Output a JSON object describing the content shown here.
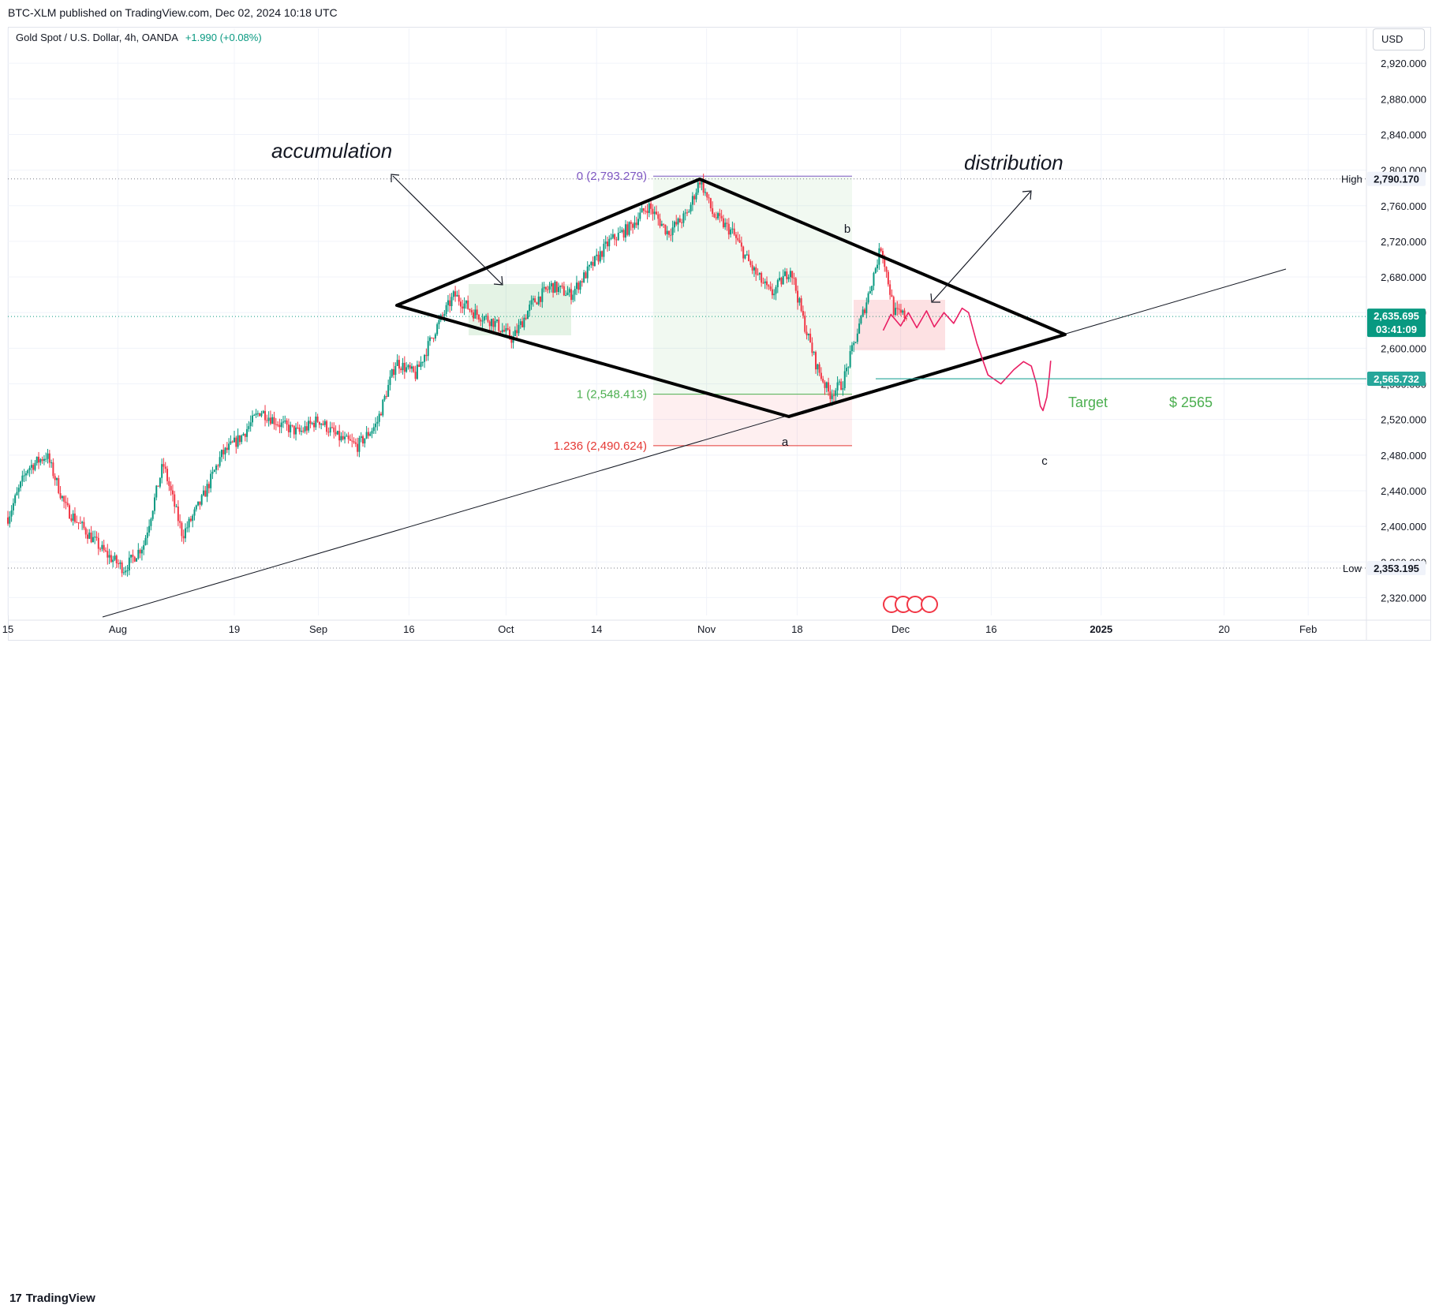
{
  "header": {
    "published_text": "BTC-XLM published on TradingView.com, Dec 02, 2024 10:18 UTC"
  },
  "symbol": {
    "name": "Gold Spot / U.S. Dollar, 4h, OANDA",
    "change": "+1.990 (+0.08%)"
  },
  "currency_button": "USD",
  "footer": {
    "logo": "17",
    "brand": "TradingView"
  },
  "colors": {
    "up": "#089981",
    "down": "#f23645",
    "fib_top": "#7e57c2",
    "fib_one": "#4caf50",
    "fib_ext": "#e53935",
    "wave": "#e91e63",
    "target": "#26a69a"
  },
  "chart_data": {
    "type": "candlestick",
    "symbol": "XAUUSD",
    "timeframe": "4h",
    "ylim": [
      2300,
      2960
    ],
    "y_ticks": [
      "2,320.000",
      "2,360.000",
      "2,400.000",
      "2,440.000",
      "2,480.000",
      "2,520.000",
      "2,560.000",
      "2,600.000",
      "2,640.000",
      "2,680.000",
      "2,720.000",
      "2,760.000",
      "2,800.000",
      "2,840.000",
      "2,880.000",
      "2,920.000"
    ],
    "x_ticks": [
      "15",
      "Aug",
      "19",
      "Sep",
      "16",
      "Oct",
      "14",
      "Nov",
      "18",
      "Dec",
      "16",
      "2025",
      "20",
      "Feb"
    ],
    "x_tick_days": [
      15,
      32,
      50,
      63,
      77,
      92,
      106,
      123,
      137,
      153,
      167,
      184,
      203,
      216
    ],
    "x_range_days": [
      15,
      225
    ],
    "price_path_days": [
      15,
      18,
      21,
      24,
      27,
      30,
      33,
      36,
      39,
      42,
      45,
      48,
      51,
      54,
      57,
      60,
      63,
      66,
      69,
      72,
      75,
      78,
      81,
      84,
      87,
      90,
      93,
      96,
      99,
      102,
      105,
      108,
      111,
      114,
      117,
      120,
      122,
      124,
      127,
      130,
      133,
      136,
      138,
      140,
      142,
      144,
      146,
      148,
      150,
      152,
      154
    ],
    "price_path": [
      2410,
      2465,
      2480,
      2420,
      2395,
      2370,
      2352,
      2380,
      2470,
      2390,
      2430,
      2480,
      2500,
      2530,
      2515,
      2505,
      2520,
      2500,
      2490,
      2515,
      2585,
      2570,
      2620,
      2660,
      2640,
      2630,
      2610,
      2650,
      2670,
      2660,
      2690,
      2720,
      2735,
      2760,
      2730,
      2750,
      2790,
      2750,
      2730,
      2690,
      2660,
      2690,
      2630,
      2580,
      2548,
      2560,
      2610,
      2660,
      2715,
      2640,
      2636
    ],
    "current_price": "2,635.695",
    "countdown": "03:41:09",
    "high_label": "High",
    "high_value": "2,790.170",
    "high": 2790.17,
    "low_label": "Low",
    "low_value": "2,353.195",
    "low": 2353.195,
    "target_value": "2,565.732",
    "target": 2565.732,
    "fib_levels": [
      {
        "label": "0 (2,793.279)",
        "value": 2793.279
      },
      {
        "label": "1 (2,548.413)",
        "value": 2548.413
      },
      {
        "label": "1.236 (2,490.624)",
        "value": 2490.624
      }
    ],
    "annotations": {
      "accumulation": "accumulation",
      "distribution": "distribution",
      "wave_a": "a",
      "wave_b": "b",
      "wave_c": "c",
      "target_text": "Target",
      "target_price": "$ 2565"
    },
    "grid": true,
    "legend": "none"
  }
}
